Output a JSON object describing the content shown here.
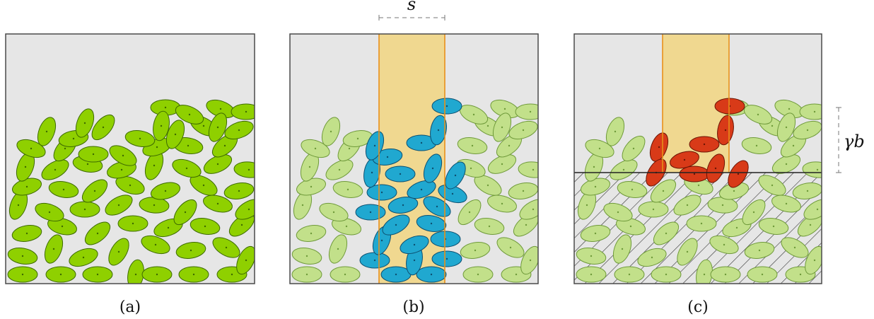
{
  "panels": [
    {
      "id": "a",
      "label": "(a)"
    },
    {
      "id": "b",
      "label": "(b)"
    },
    {
      "id": "c",
      "label": "(c)"
    }
  ],
  "annotations": {
    "strip_width_label": "s",
    "height_label": "γb"
  },
  "colors": {
    "background": "#e6e6e6",
    "frame": "#4a4a4a",
    "grain_bright": "#8fd000",
    "grain_bright_stroke": "#3d6a00",
    "grain_pale": "#c2e08a",
    "grain_pale_stroke": "#6f9a3a",
    "grain_blue": "#20a8d0",
    "grain_blue_stroke": "#0d4f70",
    "grain_red": "#d83a18",
    "grain_red_stroke": "#6a1505",
    "strip_fill": "#f0d890",
    "strip_edge": "#e8901a"
  }
}
